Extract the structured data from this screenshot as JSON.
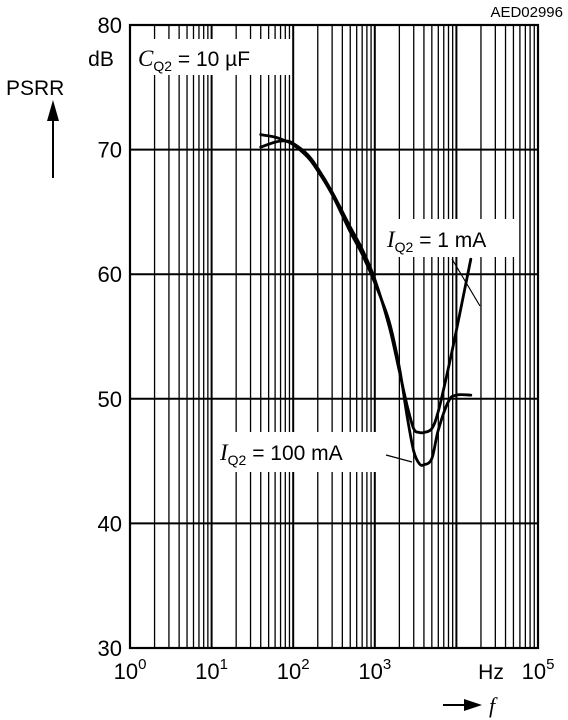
{
  "chart_data": {
    "type": "line",
    "figure_code": "AED02996",
    "y_axis": {
      "label": "PSRR",
      "unit": "dB",
      "min": 30,
      "max": 80,
      "ticks": [
        30,
        40,
        50,
        60,
        70,
        80
      ]
    },
    "x_axis": {
      "label": "f",
      "unit": "Hz",
      "scale": "log",
      "min": 1,
      "max": 100000,
      "ticks": [
        {
          "base": "10",
          "exp": "0"
        },
        {
          "base": "10",
          "exp": "1"
        },
        {
          "base": "10",
          "exp": "2"
        },
        {
          "base": "10",
          "exp": "3"
        },
        {
          "base": "",
          "exp": ""
        },
        {
          "base": "10",
          "exp": "5"
        }
      ]
    },
    "condition": {
      "symbol": "C",
      "sub": "Q2",
      "rest": " = 10 µF"
    },
    "series": [
      {
        "label": {
          "symbol": "I",
          "sub": "Q2",
          "rest": " = 1 mA"
        },
        "x": [
          40,
          60,
          80,
          100,
          150,
          200,
          300,
          500,
          700,
          1000,
          1500,
          2000,
          2500,
          3000,
          3500,
          4000,
          5000,
          6000,
          8000,
          10000,
          15000
        ],
        "y": [
          70.2,
          70.6,
          70.7,
          70.5,
          69.6,
          68.5,
          66.6,
          63.8,
          62.0,
          59.6,
          55.8,
          52.2,
          49.4,
          47.6,
          47.3,
          47.3,
          47.6,
          49.0,
          52.5,
          55.5,
          61.2
        ]
      },
      {
        "label": {
          "symbol": "I",
          "sub": "Q2",
          "rest": " = 100 mA"
        },
        "x": [
          40,
          60,
          80,
          100,
          150,
          200,
          300,
          500,
          700,
          1000,
          1500,
          2000,
          2500,
          3000,
          3500,
          4000,
          5000,
          6000,
          8000,
          10000,
          15000
        ],
        "y": [
          71.2,
          71.0,
          70.7,
          70.4,
          69.4,
          68.3,
          66.4,
          63.4,
          61.6,
          59.3,
          56.2,
          52.5,
          48.5,
          45.8,
          44.8,
          44.7,
          45.2,
          47.5,
          49.8,
          50.3,
          50.3
        ]
      }
    ],
    "grid": true
  }
}
